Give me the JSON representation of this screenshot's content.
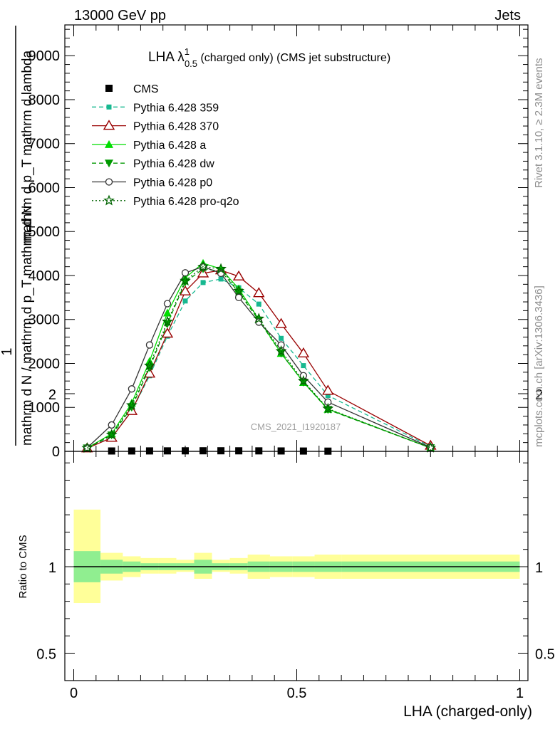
{
  "header": {
    "left": "13000 GeV pp",
    "right": "Jets"
  },
  "side_labels": {
    "rivet": "Rivet 3.1.10, ≥ 2.3M events",
    "mcplots": "mcplots.cern.ch [arXiv:1306.3436]"
  },
  "watermark": "CMS_2021_I1920187",
  "upper_ylabel": {
    "numerator": "1",
    "denominator": "mathrm d N / mathrm d p_T mathrm d N",
    "denominator2": "mathrm d p_T mathrm d lambda"
  },
  "ratio_ylabel": "Ratio to CMS",
  "xlabel": "LHA (charged-only)",
  "chart_data": [
    {
      "type": "line",
      "title": "LHA λ¹₀.₅ (charged only) (CMS jet substructure)",
      "title_parts": {
        "main": "LHA λ",
        "sup": "1",
        "sub": "0.5",
        "rest": " (charged only) (CMS jet substructure)"
      },
      "xlabel": "LHA (charged-only)",
      "ylabel": "1 / mathrm d N / mathrm d p_T mathrm d lambda",
      "xlim": [
        -0.02,
        1.02
      ],
      "ylim": [
        0,
        9700
      ],
      "yticks": [
        0,
        1000,
        2000,
        3000,
        4000,
        5000,
        6000,
        7000,
        8000,
        9000
      ],
      "ytick_labels": [
        "0",
        "1000",
        "2000",
        "3000",
        "4000",
        "5000",
        "6000",
        "7000",
        "8000",
        "9000"
      ],
      "legend_position": "top-left",
      "x": [
        0.03,
        0.085,
        0.13,
        0.17,
        0.21,
        0.25,
        0.29,
        0.33,
        0.37,
        0.415,
        0.465,
        0.515,
        0.57,
        0.8
      ],
      "series": [
        {
          "name": "CMS",
          "color": "#000000",
          "marker": "square",
          "dash": "",
          "values": [
            null,
            8.5,
            9,
            10,
            11,
            12,
            13,
            13,
            12,
            11,
            9,
            7,
            5,
            null
          ]
        },
        {
          "name": "Pythia 6.428 359",
          "color": "#17b890",
          "marker": "small-square",
          "dash": "6,4",
          "values": [
            70,
            330,
            920,
            1720,
            2620,
            3420,
            3840,
            3920,
            3720,
            3350,
            2570,
            1950,
            1270,
            110
          ]
        },
        {
          "name": "Pythia 6.428 370",
          "color": "#990000",
          "marker": "open-triangle",
          "dash": "",
          "values": [
            70,
            310,
            920,
            1770,
            2680,
            3640,
            4050,
            4120,
            3980,
            3600,
            2900,
            2230,
            1380,
            130
          ]
        },
        {
          "name": "Pythia 6.428 a",
          "color": "#00dd00",
          "marker": "filled-triangle",
          "dash": "",
          "values": [
            75,
            400,
            1100,
            2050,
            3150,
            3950,
            4280,
            4150,
            3700,
            3000,
            2230,
            1570,
            960,
            80
          ]
        },
        {
          "name": "Pythia 6.428 dw",
          "color": "#009900",
          "marker": "filled-triangle-down",
          "dash": "6,4",
          "values": [
            75,
            370,
            1000,
            1900,
            2900,
            3850,
            4150,
            4100,
            3620,
            2980,
            2230,
            1570,
            950,
            80
          ]
        },
        {
          "name": "Pythia 6.428 p0",
          "color": "#333333",
          "marker": "open-circle",
          "dash": "",
          "values": [
            80,
            600,
            1420,
            2420,
            3360,
            4060,
            4200,
            4050,
            3500,
            2940,
            2420,
            1720,
            1120,
            90
          ]
        },
        {
          "name": "Pythia 6.428 pro-q2o",
          "color": "#006400",
          "marker": "star",
          "dash": "2,3",
          "values": [
            75,
            380,
            1050,
            1950,
            2950,
            3880,
            4200,
            4150,
            3650,
            3020,
            2280,
            1600,
            970,
            80
          ]
        }
      ]
    },
    {
      "type": "area",
      "title": "",
      "ylabel": "Ratio to CMS",
      "xlabel": "LHA (charged-only)",
      "ylim": [
        0.4,
        2.3
      ],
      "yticks": [
        0.5,
        1,
        2
      ],
      "ytick_labels": [
        "0.5",
        "1",
        "2"
      ],
      "xticks": [
        0,
        0.5,
        1
      ],
      "xtick_labels": [
        "0",
        "0.5",
        "1"
      ],
      "bins": [
        0,
        0.06,
        0.11,
        0.15,
        0.19,
        0.23,
        0.27,
        0.31,
        0.35,
        0.39,
        0.44,
        0.49,
        0.54,
        0.6,
        1.0
      ],
      "band_stat": {
        "color": "#90ee90",
        "lo": [
          0.91,
          0.96,
          0.97,
          0.98,
          0.98,
          0.98,
          0.96,
          0.98,
          0.98,
          0.97,
          0.97,
          0.97,
          0.97,
          0.97
        ],
        "hi": [
          1.09,
          1.04,
          1.03,
          1.02,
          1.02,
          1.02,
          1.04,
          1.02,
          1.02,
          1.03,
          1.03,
          1.03,
          1.03,
          1.03
        ]
      },
      "band_total": {
        "color": "#ffff99",
        "lo": [
          0.79,
          0.92,
          0.94,
          0.96,
          0.96,
          0.97,
          0.93,
          0.97,
          0.96,
          0.93,
          0.94,
          0.94,
          0.93,
          0.93
        ],
        "hi": [
          1.33,
          1.08,
          1.06,
          1.05,
          1.05,
          1.04,
          1.08,
          1.04,
          1.05,
          1.07,
          1.06,
          1.06,
          1.07,
          1.07
        ]
      },
      "reference": 1
    }
  ]
}
